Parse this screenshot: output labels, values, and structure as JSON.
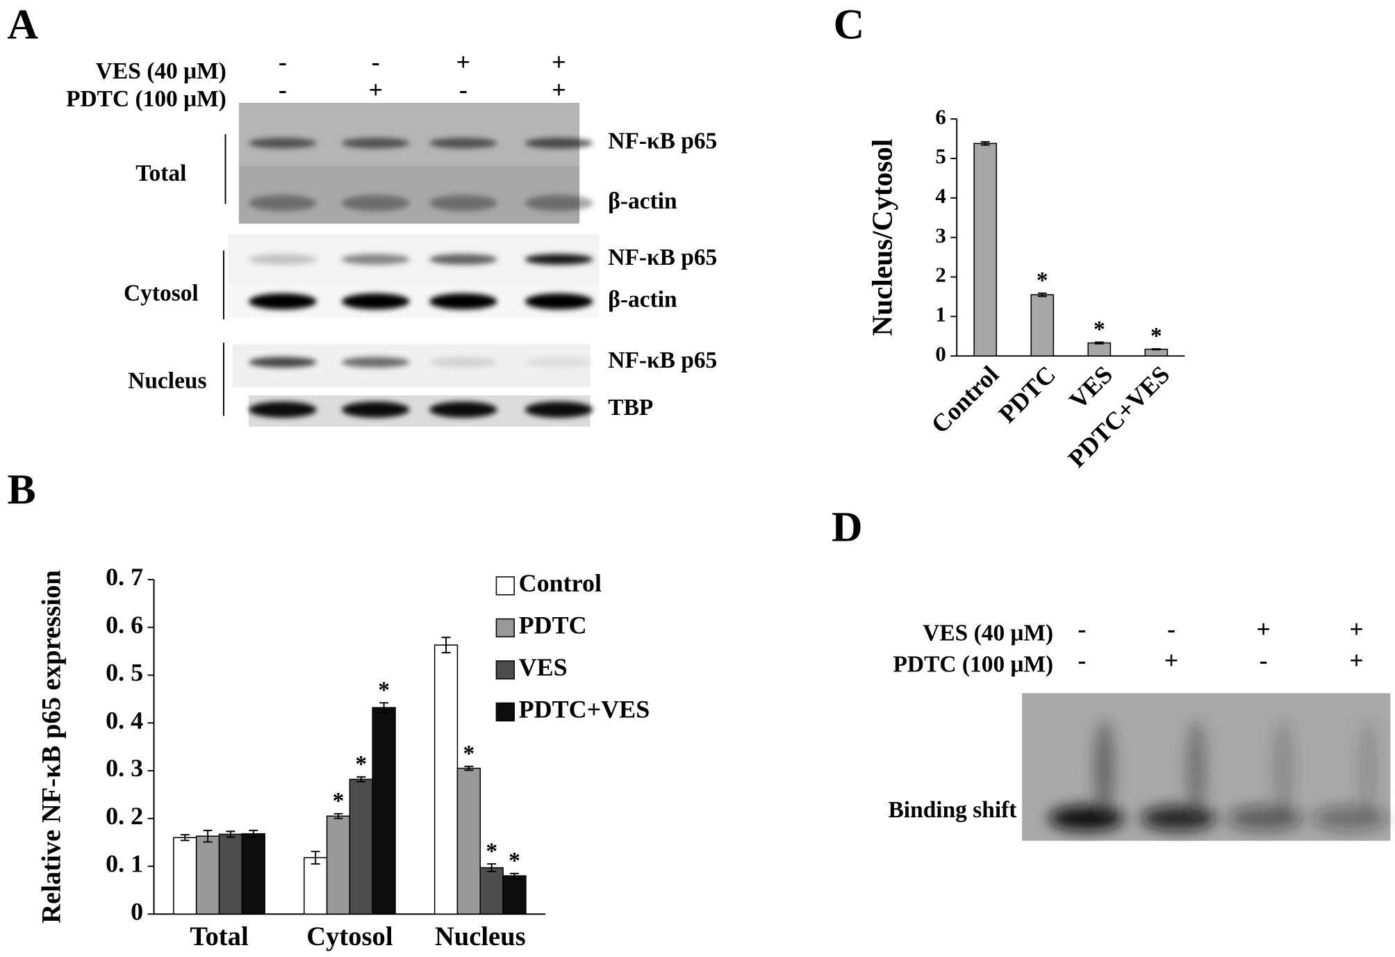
{
  "panel_a": {
    "letter": "A",
    "conditions": [
      {
        "label": "VES (40 μM)",
        "signs": [
          "-",
          "-",
          "+",
          "+"
        ]
      },
      {
        "label": "PDTC (100 μM)",
        "signs": [
          "-",
          "+",
          "-",
          "+"
        ]
      }
    ],
    "fractions": [
      {
        "name": "Total",
        "bands": [
          "NF-κB p65",
          "β-actin"
        ]
      },
      {
        "name": "Cytosol",
        "bands": [
          "NF-κB p65",
          "β-actin"
        ]
      },
      {
        "name": "Nucleus",
        "bands": [
          "NF-κB p65",
          "TBP"
        ]
      }
    ]
  },
  "panel_d": {
    "letter": "D",
    "conditions": [
      {
        "label": "VES (40 μM)",
        "signs": [
          "-",
          "-",
          "+",
          "+"
        ]
      },
      {
        "label": "PDTC (100 μM)",
        "signs": [
          "-",
          "+",
          "-",
          "+"
        ]
      }
    ],
    "band": "Binding shift"
  },
  "chart_data": [
    {
      "type": "bar",
      "panel": "B",
      "ylabel": "Relative NF-κB p65 expression",
      "categories": [
        "Total",
        "Cytosol",
        "Nucleus"
      ],
      "series": [
        {
          "name": "Control",
          "color": "#ffffff",
          "values": [
            0.16,
            0.118,
            0.563
          ],
          "errors": [
            0.006,
            0.013,
            0.016
          ]
        },
        {
          "name": "PDTC",
          "color": "#999999",
          "values": [
            0.163,
            0.205,
            0.305
          ],
          "errors": [
            0.012,
            0.005,
            0.004
          ],
          "labels": [
            null,
            "*",
            "*"
          ]
        },
        {
          "name": "VES",
          "color": "#4d4d4d",
          "values": [
            0.167,
            0.282,
            0.097
          ],
          "errors": [
            0.006,
            0.005,
            0.008
          ],
          "labels": [
            null,
            "*",
            "*"
          ]
        },
        {
          "name": "PDTC+VES",
          "color": "#0d0d0d",
          "values": [
            0.168,
            0.432,
            0.08
          ],
          "errors": [
            0.007,
            0.01,
            0.005
          ],
          "labels": [
            null,
            "*",
            "*"
          ]
        }
      ],
      "ylim": [
        0,
        0.7
      ],
      "yticks": [
        0,
        {
          "value": 0.1,
          "label": "0. 1"
        },
        {
          "value": 0.2,
          "label": "0. 2"
        },
        {
          "value": 0.3,
          "label": "0. 3"
        },
        {
          "value": 0.4,
          "label": "0. 4"
        },
        {
          "value": 0.5,
          "label": "0. 5"
        },
        {
          "value": 0.6,
          "label": "0. 6"
        },
        {
          "value": 0.7,
          "label": "0. 7"
        }
      ],
      "legend": "upper right"
    },
    {
      "type": "bar",
      "panel": "C",
      "ylabel": "Nucleus/Cytosol",
      "categories": [
        "Control",
        "PDTC",
        "VES",
        "PDTC+VES"
      ],
      "values": [
        5.38,
        1.55,
        0.33,
        0.17
      ],
      "errors": [
        0.04,
        0.04,
        0.02,
        0.01
      ],
      "labels": [
        null,
        "*",
        "*",
        "*"
      ],
      "color": "#a6a6a6",
      "ylim": [
        0,
        6
      ],
      "yticks": [
        0,
        1,
        2,
        3,
        4,
        5,
        6
      ]
    }
  ]
}
